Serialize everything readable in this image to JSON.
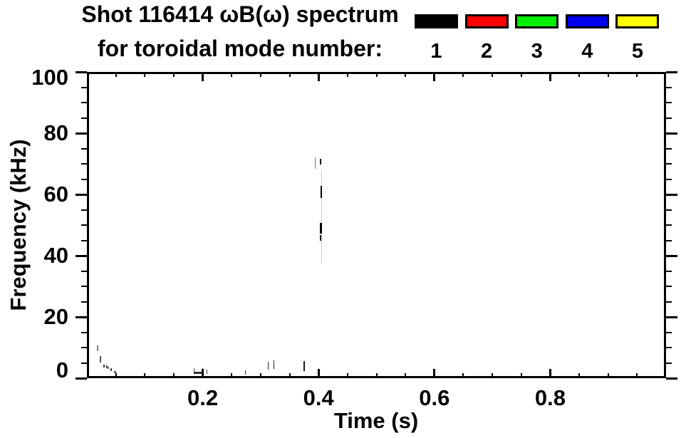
{
  "chart_data": {
    "type": "scatter",
    "title_line1": "Shot 116414 ωB(ω) spectrum",
    "title_line2": "for toroidal mode number:",
    "xlabel": "Time (s)",
    "ylabel": "Frequency (kHz)",
    "xlim": [
      0,
      1.0
    ],
    "ylim": [
      0,
      100
    ],
    "x_major_ticks": [
      0.2,
      0.4,
      0.6,
      0.8
    ],
    "x_tick_labels": [
      "0.2",
      "0.4",
      "0.6",
      "0.8"
    ],
    "x_minor_interval": 0.05,
    "y_major_ticks": [
      0,
      20,
      40,
      60,
      80,
      100
    ],
    "y_tick_labels": [
      "0",
      "20",
      "40",
      "60",
      "80",
      "100"
    ],
    "y_minor_interval": 5,
    "grid": false,
    "background": "#ffffff",
    "axis_color": "#000000",
    "legend": {
      "position": "top-right",
      "title": "toroidal mode number",
      "entries": [
        {
          "label": "1",
          "color": "#000000"
        },
        {
          "label": "2",
          "color": "#ff0000"
        },
        {
          "label": "3",
          "color": "#00ee00"
        },
        {
          "label": "4",
          "color": "#0000ee"
        },
        {
          "label": "5",
          "color": "#ffff00"
        }
      ]
    },
    "series": [
      {
        "name": "toroidal mode n=1",
        "color": "#000000",
        "mark_format": "t:[t_start_s,t_end_s], f:[freq_min_kHz,freq_max_kHz]",
        "marks": [
          {
            "t": [
              0.0175,
              0.0195
            ],
            "f": [
              8.8,
              10.7
            ],
            "opacity": 0.5
          },
          {
            "t": [
              0.0225,
              0.0245
            ],
            "f": [
              5.0,
              7.2
            ],
            "opacity": 0.65
          },
          {
            "t": [
              0.0285,
              0.0305
            ],
            "f": [
              3.6,
              4.5
            ],
            "opacity": 0.75
          },
          {
            "t": [
              0.0335,
              0.0355
            ],
            "f": [
              3.3,
              4.1
            ],
            "opacity": 0.65
          },
          {
            "t": [
              0.036,
              0.0378
            ],
            "f": [
              3.1,
              3.8
            ],
            "opacity": 0.55
          },
          {
            "t": [
              0.0405,
              0.0425
            ],
            "f": [
              2.4,
              3.3
            ],
            "opacity": 0.75
          },
          {
            "t": [
              0.047,
              0.05
            ],
            "f": [
              1.6,
              2.4
            ],
            "opacity": 0.65
          },
          {
            "t": [
              0.185,
              0.2
            ],
            "f": [
              1.4,
              2.1
            ],
            "opacity": 0.8
          },
          {
            "t": [
              0.1845,
              0.1862
            ],
            "f": [
              1.4,
              3.2
            ],
            "opacity": 0.7
          },
          {
            "t": [
              0.1988,
              0.2005
            ],
            "f": [
              1.4,
              3.2
            ],
            "opacity": 0.7
          },
          {
            "t": [
              0.2065,
              0.2082
            ],
            "f": [
              1.4,
              2.9
            ],
            "opacity": 0.8
          },
          {
            "t": [
              0.273,
              0.2748
            ],
            "f": [
              1.2,
              2.6
            ],
            "opacity": 0.8
          },
          {
            "t": [
              0.3125,
              0.3142
            ],
            "f": [
              2.8,
              5.3
            ],
            "opacity": 0.85
          },
          {
            "t": [
              0.322,
              0.3238
            ],
            "f": [
              3.0,
              5.7
            ],
            "opacity": 0.85
          },
          {
            "t": [
              0.374,
              0.3758
            ],
            "f": [
              2.4,
              5.6
            ],
            "opacity": 0.9
          },
          {
            "t": [
              0.3935,
              0.3952
            ],
            "f": [
              68.3,
              72.0
            ],
            "opacity": 0.55
          },
          {
            "t": [
              0.4025,
              0.4042
            ],
            "f": [
              69.8,
              71.6
            ],
            "opacity": 0.9
          },
          {
            "t": [
              0.4035,
              0.4058
            ],
            "f": [
              58.8,
              62.9
            ],
            "opacity": 1.0
          },
          {
            "t": [
              0.4025,
              0.4058
            ],
            "f": [
              47.2,
              50.7
            ],
            "opacity": 1.0
          },
          {
            "t": [
              0.4025,
              0.4052
            ],
            "f": [
              44.8,
              46.8
            ],
            "opacity": 0.95
          },
          {
            "t": [
              0.4042,
              0.4054
            ],
            "f": [
              37.4,
              67.8
            ],
            "opacity": 0.2
          }
        ]
      }
    ]
  }
}
